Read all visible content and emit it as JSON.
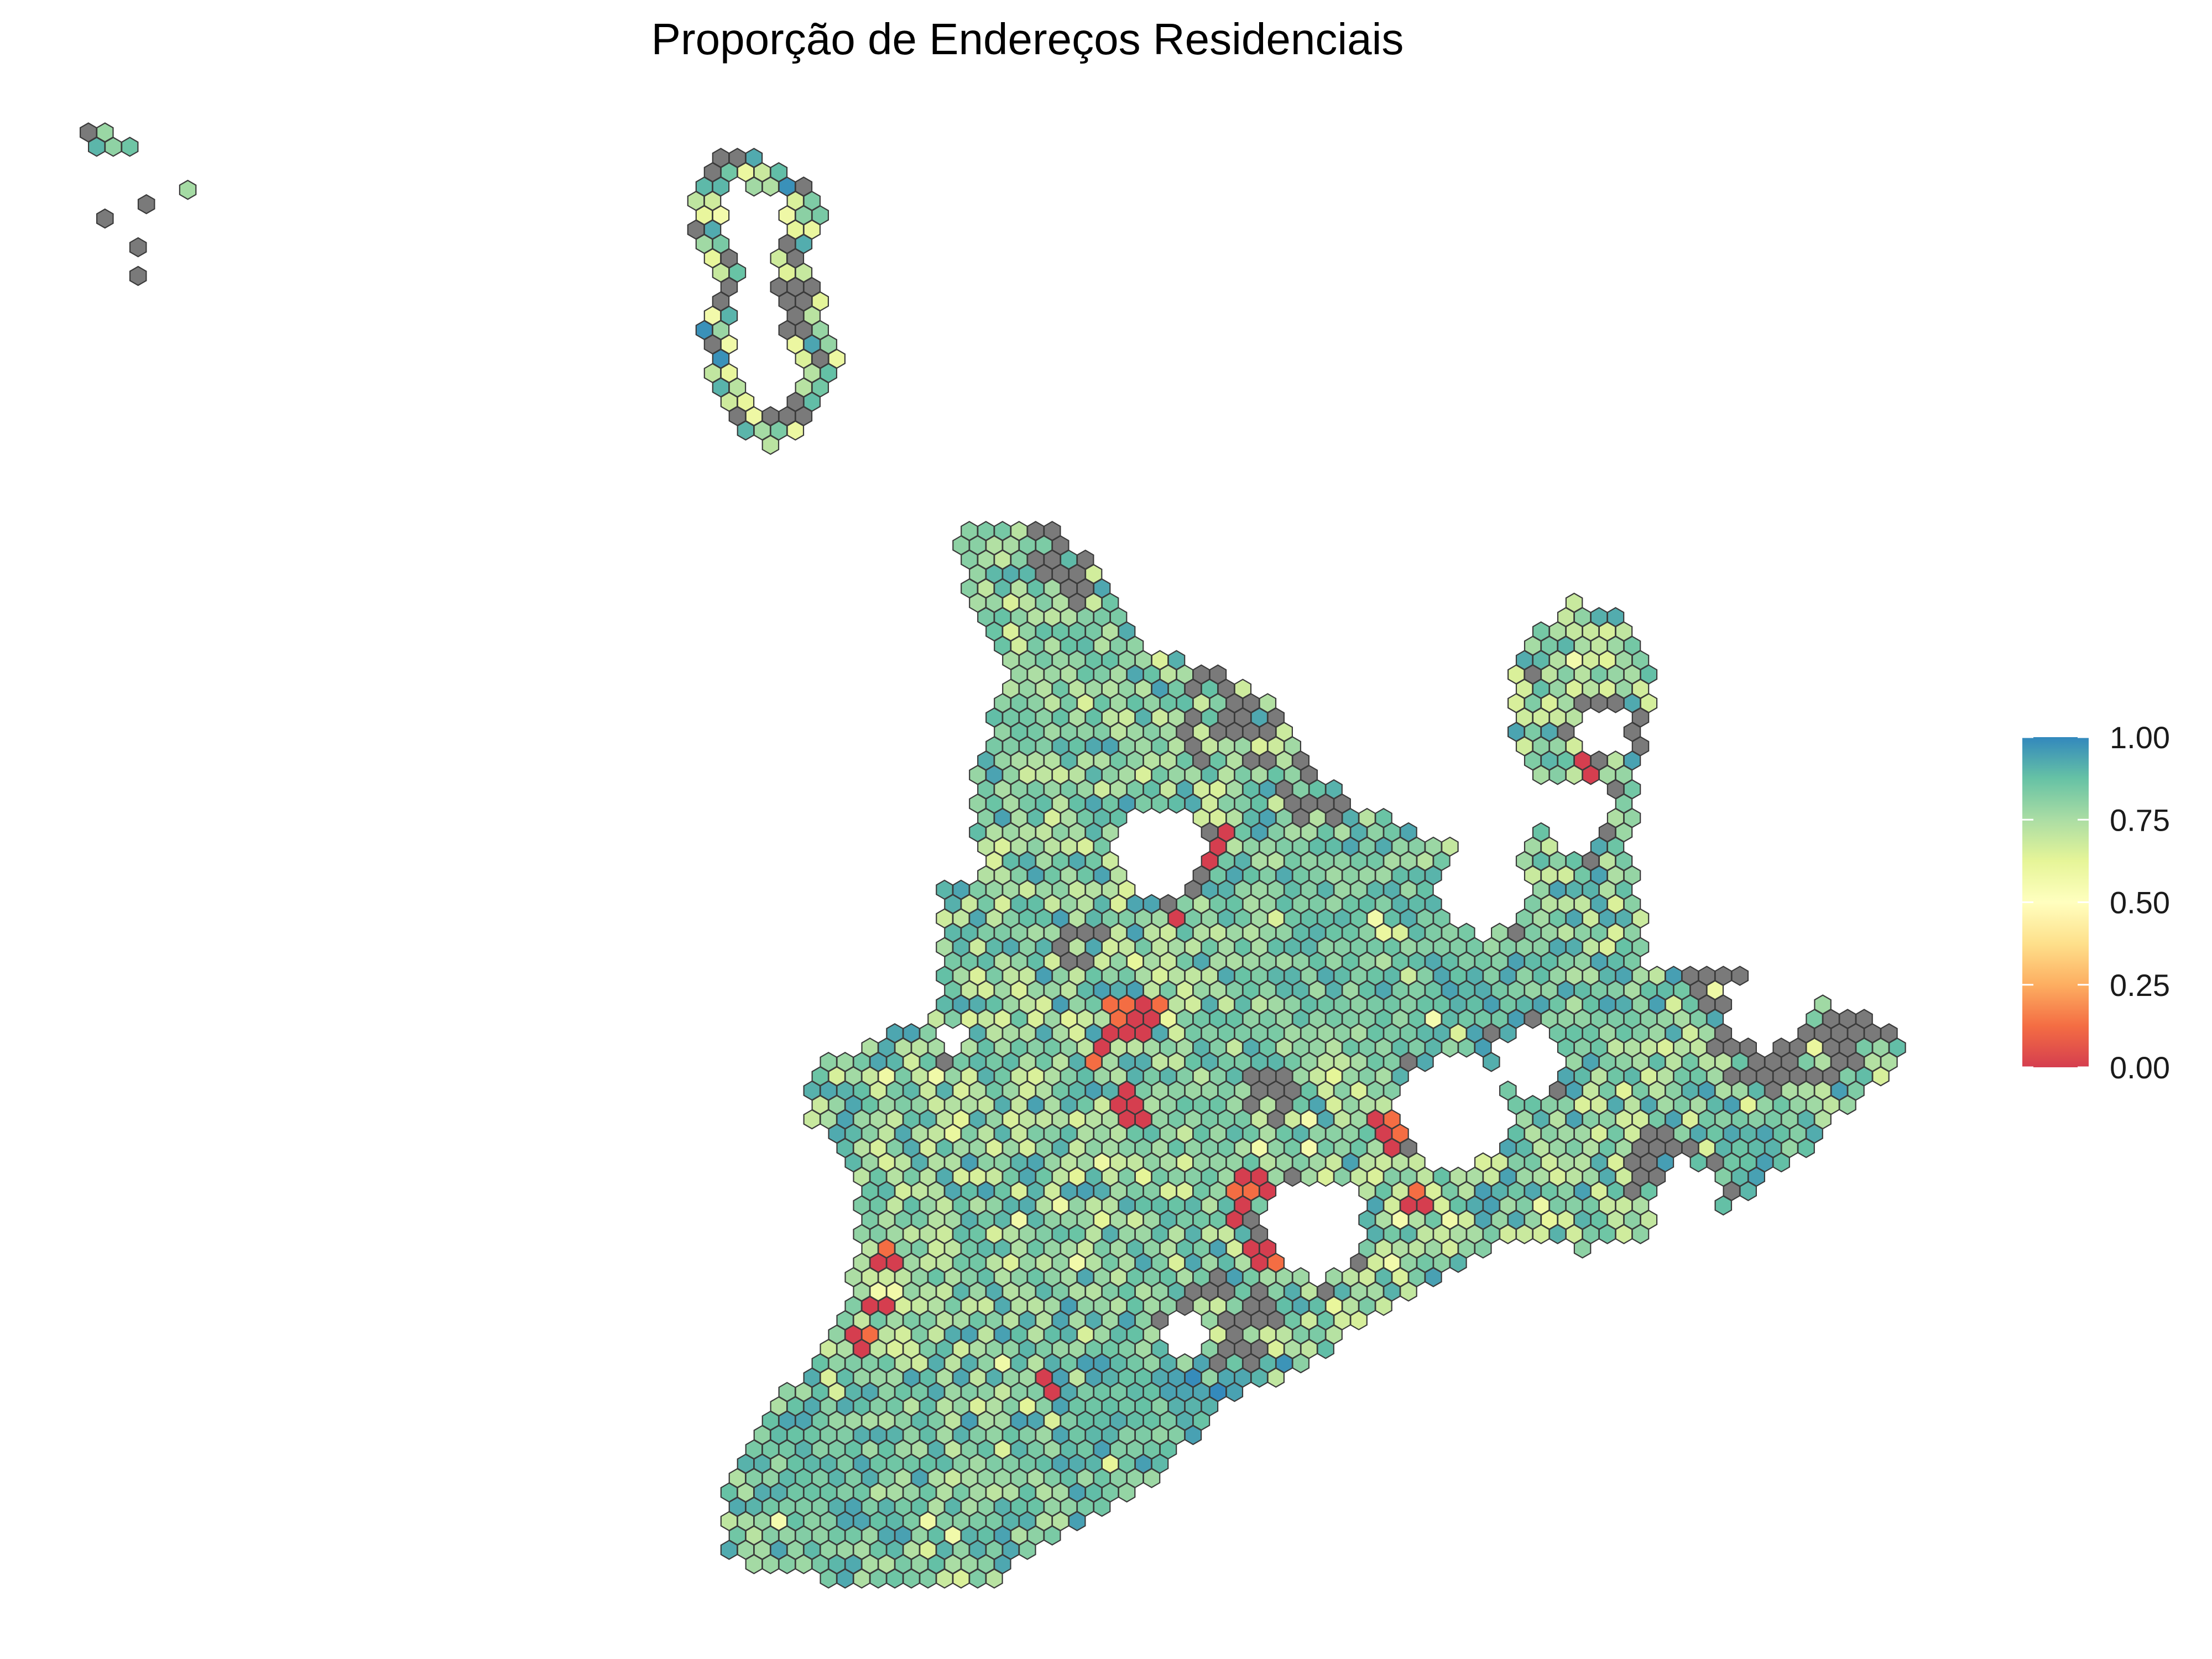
{
  "title": "Proporção de Endereços Residenciais",
  "legend": {
    "ticks": [
      "1.00",
      "0.75",
      "0.50",
      "0.25",
      "0.00"
    ],
    "tick_values": [
      1.0,
      0.75,
      0.5,
      0.25,
      0.0
    ],
    "placement": "right",
    "colorscale": [
      "#d53e4f",
      "#f46d43",
      "#fdae61",
      "#fee08b",
      "#ffffbf",
      "#e6f598",
      "#abdda4",
      "#66c2a5",
      "#3288bd"
    ]
  },
  "colors": {
    "missing": "#7a7a7a",
    "hex_border": "#3a3a3a",
    "background": "#ffffff"
  }
}
